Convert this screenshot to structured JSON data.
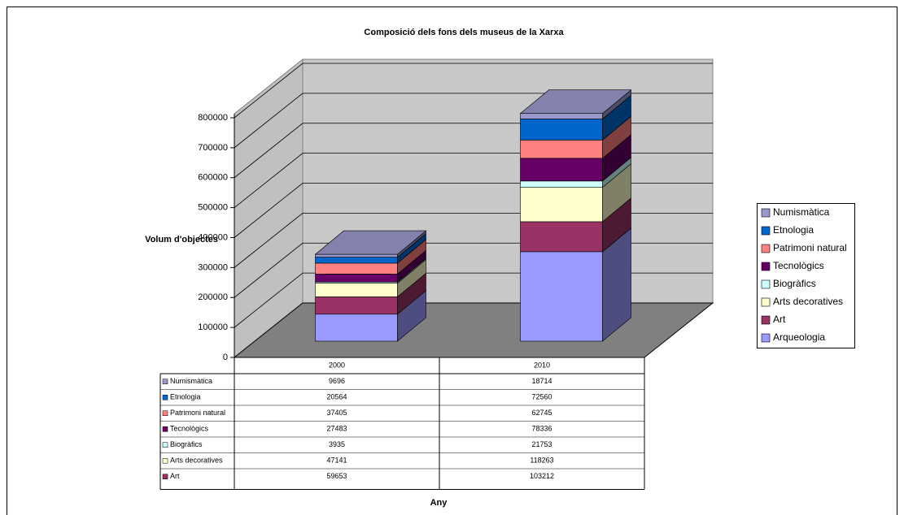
{
  "chart_data": {
    "type": "bar3d_stacked",
    "title": "Composició dels fons dels museus de la Xarxa",
    "y_label": "Volum d'objectes",
    "x_label": "Any",
    "categories": [
      "2000",
      "2010"
    ],
    "series": [
      {
        "name": "Arqueologia",
        "color": "#9999ff",
        "values": [
          93000,
          308000
        ]
      },
      {
        "name": "Art",
        "color": "#993366",
        "values": [
          59653,
          103212
        ]
      },
      {
        "name": "Arts decoratives",
        "color": "#ffffcc",
        "values": [
          47141,
          118263
        ]
      },
      {
        "name": "Biogràfics",
        "color": "#ccffff",
        "values": [
          3935,
          21753
        ]
      },
      {
        "name": "Tecnològics",
        "color": "#660066",
        "values": [
          27483,
          78336
        ]
      },
      {
        "name": "Patrimoni natural",
        "color": "#ff8080",
        "values": [
          37405,
          62745
        ]
      },
      {
        "name": "Etnologia",
        "color": "#0066cc",
        "values": [
          20564,
          72560
        ]
      },
      {
        "name": "Numismàtica",
        "color": "#9999cc",
        "values": [
          9696,
          18714
        ]
      }
    ],
    "ylim": [
      0,
      800000
    ],
    "yticks": [
      0,
      100000,
      200000,
      300000,
      400000,
      500000,
      600000,
      700000,
      800000
    ],
    "grid": true,
    "legend": "right",
    "data_table": true
  }
}
